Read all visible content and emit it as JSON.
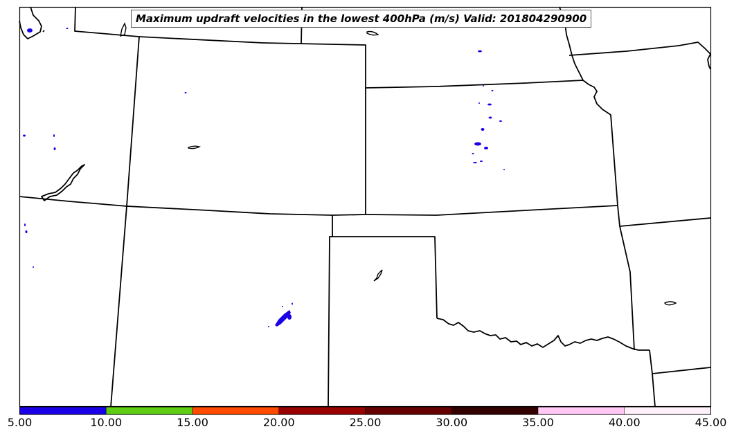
{
  "title": "Maximum updraft velocities in the lowest 400hPa (m/s) Valid: 201804290900",
  "colorbar": {
    "ticks": [
      "5.00",
      "10.00",
      "15.00",
      "20.00",
      "25.00",
      "30.00",
      "35.00",
      "40.00",
      "45.00"
    ],
    "bins": [
      {
        "range": "5-10",
        "color": "#1a00e6"
      },
      {
        "range": "10-15",
        "color": "#5ecd14"
      },
      {
        "range": "15-20",
        "color": "#ff4a00"
      },
      {
        "range": "20-25",
        "color": "#990000"
      },
      {
        "range": "25-30",
        "color": "#660000"
      },
      {
        "range": "30-35",
        "color": "#330000"
      },
      {
        "range": "35-40",
        "color": "#ffc8f5"
      },
      {
        "range": "40-45",
        "color": "#fff0fa"
      }
    ]
  },
  "colors": {
    "updraft_5_10": "#1a00e6",
    "border": "#000000"
  }
}
